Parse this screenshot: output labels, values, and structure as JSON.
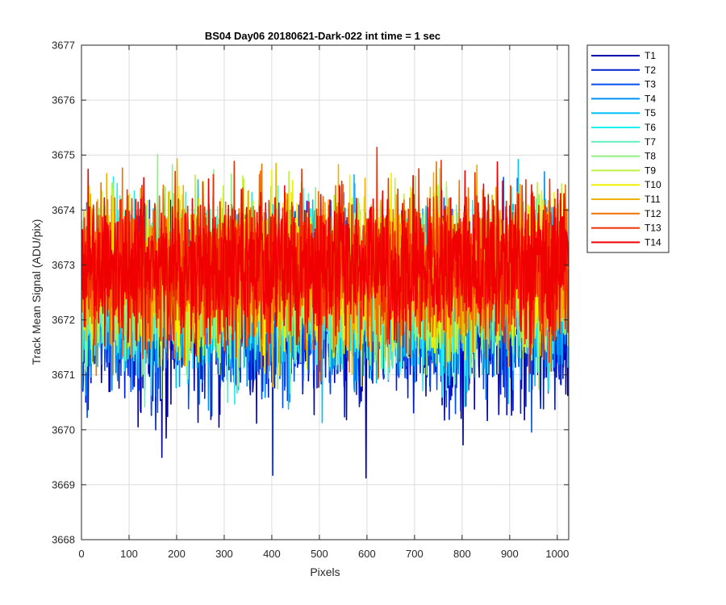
{
  "chart_data": {
    "type": "line",
    "title": "BS04 Day06 20180621-Dark-022 int time = 1 sec",
    "xlabel": "Pixels",
    "ylabel": "Track Mean Signal (ADU/pix)",
    "xlim": [
      0,
      1024
    ],
    "ylim": [
      3668,
      3677
    ],
    "xticks": [
      "0",
      "100",
      "200",
      "300",
      "400",
      "500",
      "600",
      "700",
      "800",
      "900",
      "1000"
    ],
    "yticks": [
      "3668",
      "3669",
      "3670",
      "3671",
      "3672",
      "3673",
      "3674",
      "3675",
      "3676",
      "3677"
    ],
    "grid": true,
    "legend_position": "outside-top-right",
    "num_points": 1024,
    "series": [
      {
        "name": "T1",
        "color": "#0000AF",
        "mean": 3672.1,
        "spread": 1.25
      },
      {
        "name": "T2",
        "color": "#0020D0",
        "mean": 3672.2,
        "spread": 1.2
      },
      {
        "name": "T3",
        "color": "#0050F0",
        "mean": 3672.3,
        "spread": 1.2
      },
      {
        "name": "T4",
        "color": "#0090F5",
        "mean": 3672.4,
        "spread": 1.15
      },
      {
        "name": "T5",
        "color": "#00C0F5",
        "mean": 3672.5,
        "spread": 1.15
      },
      {
        "name": "T6",
        "color": "#20F0F0",
        "mean": 3672.55,
        "spread": 1.1
      },
      {
        "name": "T7",
        "color": "#60F0C0",
        "mean": 3672.6,
        "spread": 1.1
      },
      {
        "name": "T8",
        "color": "#90F080",
        "mean": 3672.7,
        "spread": 1.1
      },
      {
        "name": "T9",
        "color": "#C0F040",
        "mean": 3672.75,
        "spread": 1.05
      },
      {
        "name": "T10",
        "color": "#F0F000",
        "mean": 3672.8,
        "spread": 1.05
      },
      {
        "name": "T11",
        "color": "#F0B000",
        "mean": 3672.85,
        "spread": 1.05
      },
      {
        "name": "T12",
        "color": "#F07000",
        "mean": 3672.9,
        "spread": 1.05
      },
      {
        "name": "T13",
        "color": "#F03000",
        "mean": 3672.95,
        "spread": 1.05
      },
      {
        "name": "T14",
        "color": "#F00000",
        "mean": 3673.0,
        "spread": 1.05
      }
    ]
  }
}
